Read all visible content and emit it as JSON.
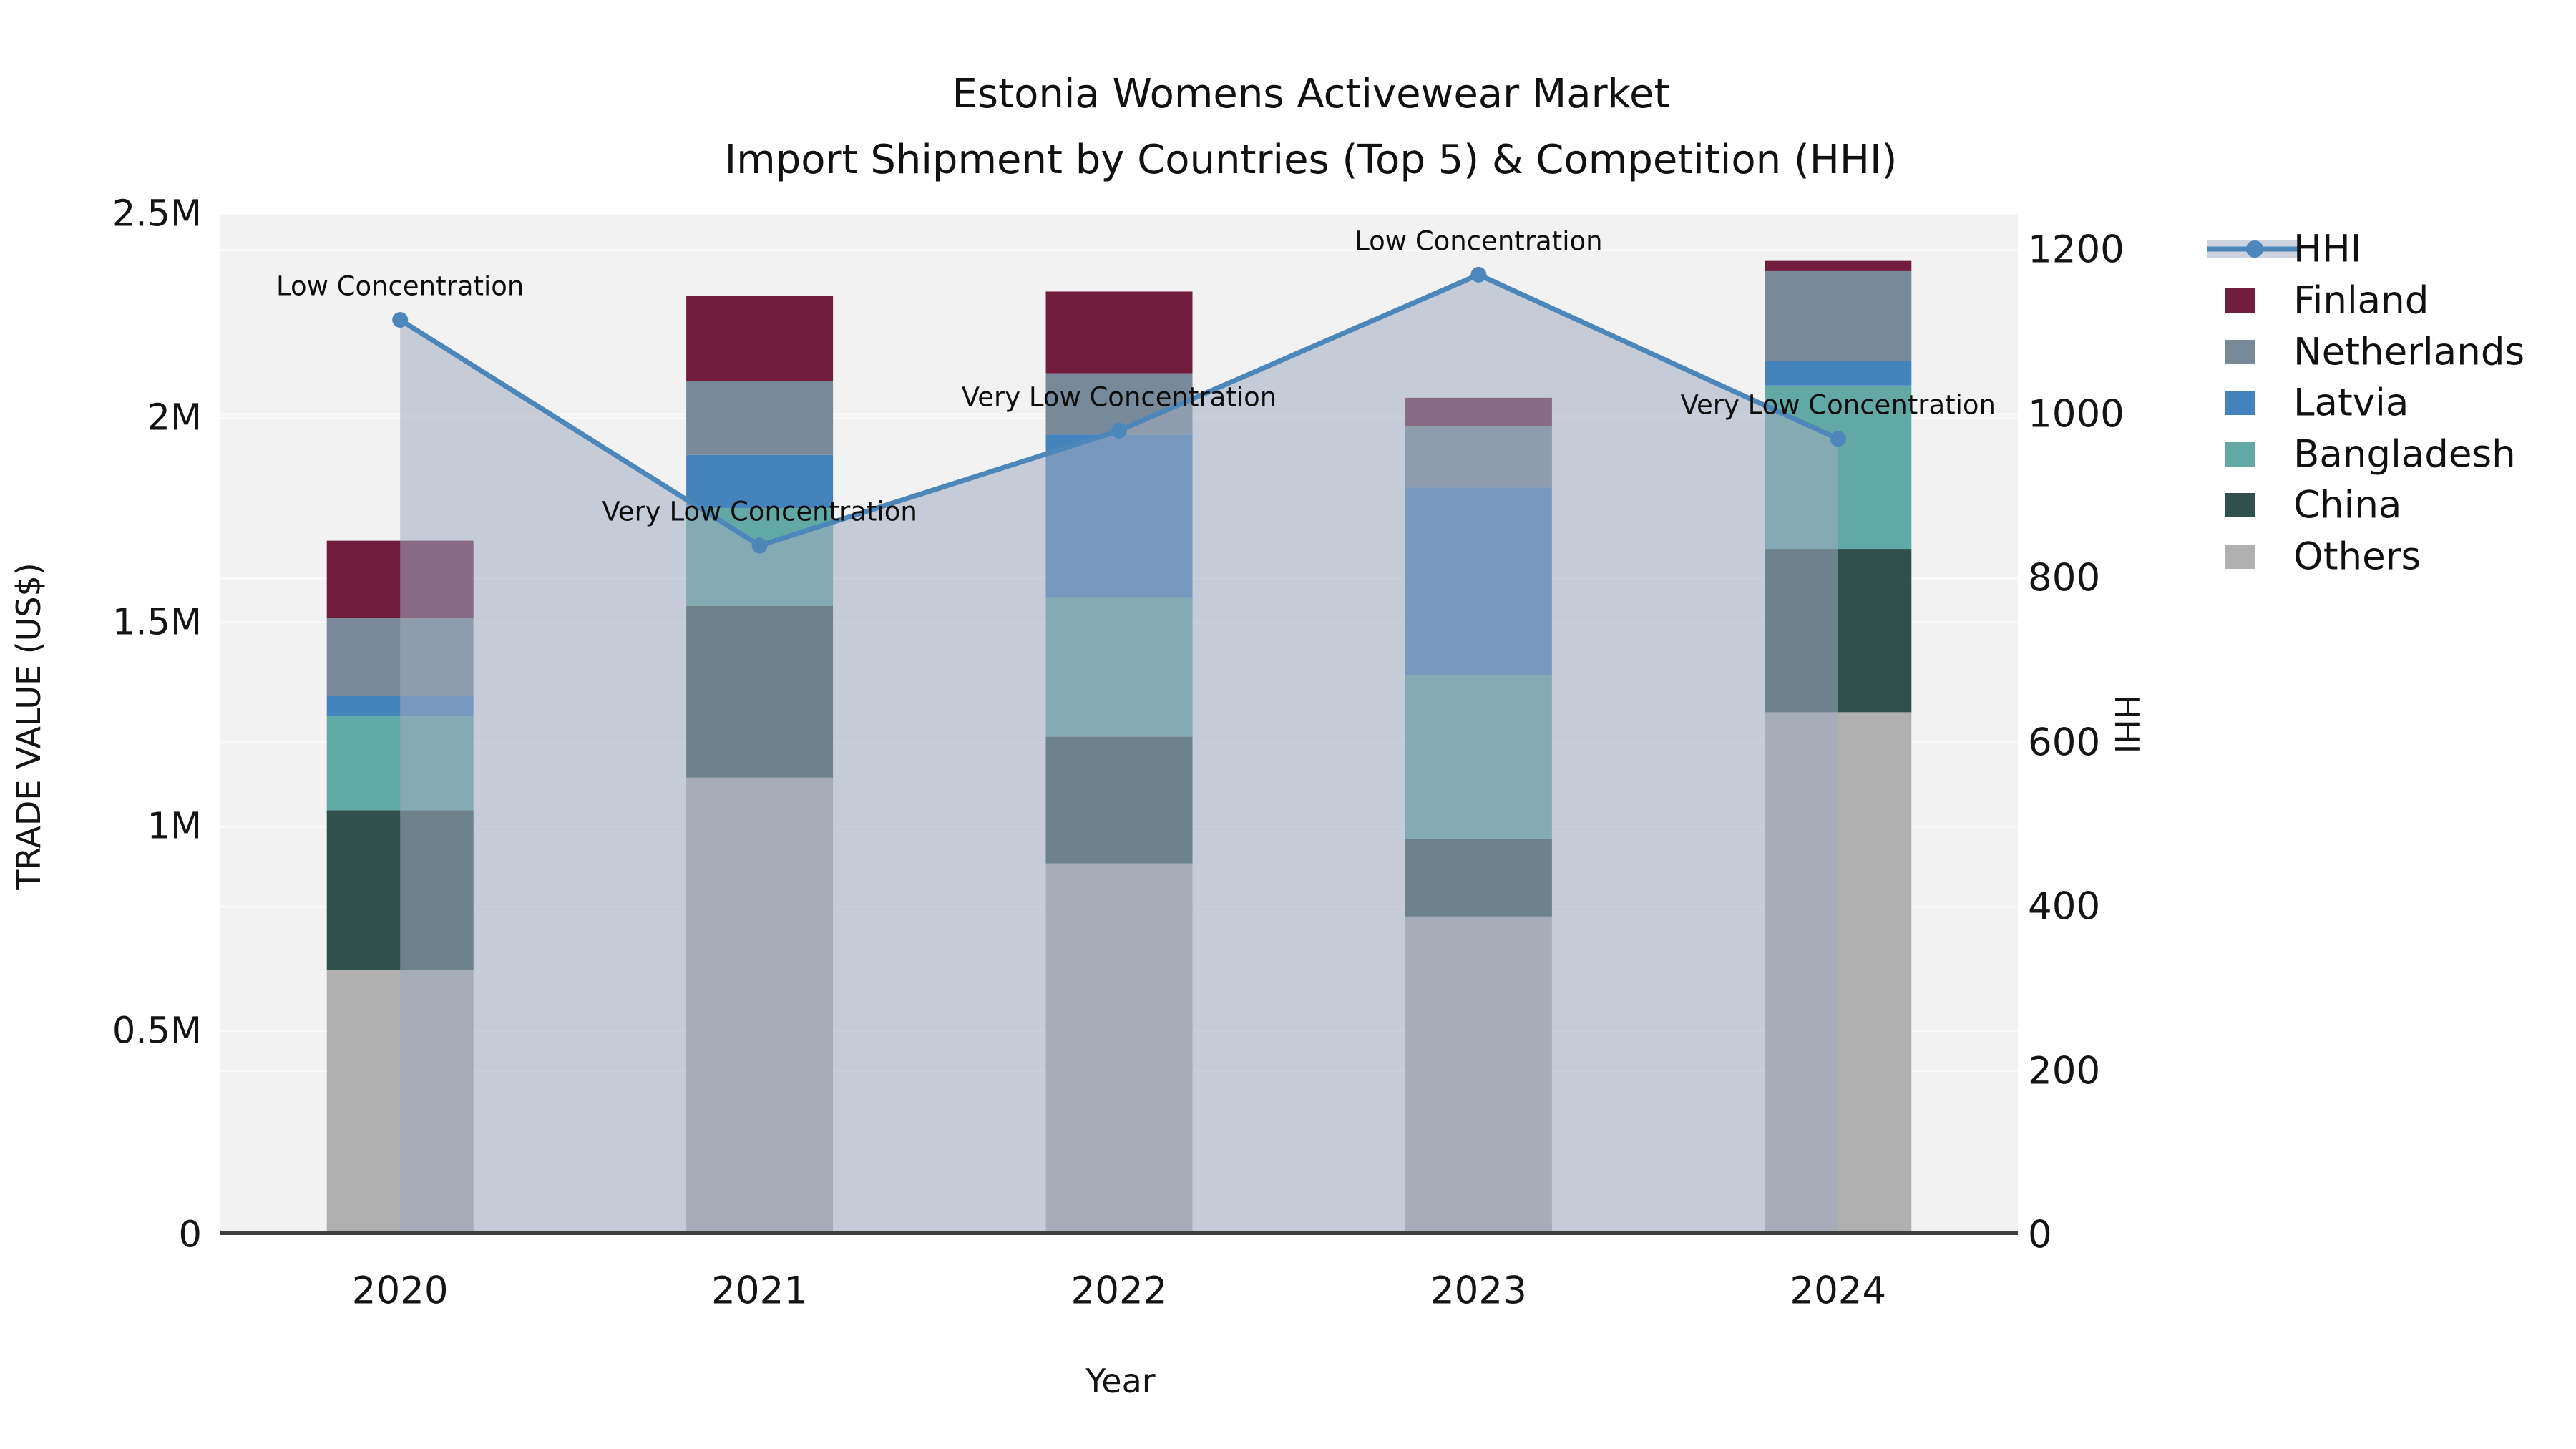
{
  "title": {
    "line1": "Estonia Womens Activewear Market",
    "line2": "Import Shipment by Countries (Top 5) & Competition (HHI)"
  },
  "axes": {
    "x_label": "Year",
    "y_left_label": "TRADE VALUE (US$)",
    "y_right_label": "HHI",
    "y_left_ticks": [
      "0",
      "0.5M",
      "1M",
      "1.5M",
      "2M",
      "2.5M"
    ],
    "y_right_ticks": [
      "0",
      "200",
      "400",
      "600",
      "800",
      "1000",
      "1200"
    ]
  },
  "legend": [
    {
      "label": "HHI",
      "symbol": "line",
      "line_color": "#4d86b8",
      "area_color": "#ccd3de"
    },
    {
      "label": "Finland",
      "symbol": "patch",
      "color": "#701d3e"
    },
    {
      "label": "Netherlands",
      "symbol": "patch",
      "color": "#78899a"
    },
    {
      "label": "Latvia",
      "symbol": "patch",
      "color": "#4583bd"
    },
    {
      "label": "Bangladesh",
      "symbol": "patch",
      "color": "#62a8a5"
    },
    {
      "label": "China",
      "symbol": "patch",
      "color": "#30504b"
    },
    {
      "label": "Others",
      "symbol": "patch",
      "color": "#b0b0b0"
    }
  ],
  "chart_data": {
    "type": "combo: stacked bar (trade value) + line with area (HHI)",
    "title": "Estonia Womens Activewear Market — Import Shipment by Countries (Top 5) & Competition (HHI)",
    "categories": [
      "2020",
      "2021",
      "2022",
      "2023",
      "2024"
    ],
    "xlabel": "Year",
    "ylabel_left": "TRADE VALUE (US$)",
    "ylabel_right": "HHI",
    "ylim_left": [
      0,
      2500000
    ],
    "ylim_right": [
      0,
      1244
    ],
    "y_left_tick_values": [
      0,
      500000,
      1000000,
      1500000,
      2000000,
      2500000
    ],
    "y_right_tick_values": [
      0,
      200,
      400,
      600,
      800,
      1000,
      1200
    ],
    "grid": true,
    "legend_position": "right",
    "stack_order_bottom_to_top": [
      "Others",
      "China",
      "Bangladesh",
      "Latvia",
      "Netherlands",
      "Finland"
    ],
    "series": [
      {
        "name": "Others",
        "color": "#b0b0b0",
        "values": [
          650000,
          1120000,
          910000,
          780000,
          1280000
        ]
      },
      {
        "name": "China",
        "color": "#30504b",
        "values": [
          390000,
          420000,
          310000,
          190000,
          400000
        ]
      },
      {
        "name": "Bangladesh",
        "color": "#62a8a5",
        "values": [
          230000,
          240000,
          340000,
          400000,
          400000
        ]
      },
      {
        "name": "Latvia",
        "color": "#4583bd",
        "values": [
          50000,
          130000,
          400000,
          460000,
          60000
        ]
      },
      {
        "name": "Netherlands",
        "color": "#78899a",
        "values": [
          190000,
          180000,
          150000,
          150000,
          220000
        ]
      },
      {
        "name": "Finland",
        "color": "#701d3e",
        "values": [
          190000,
          210000,
          200000,
          70000,
          25000
        ]
      }
    ],
    "hhi": {
      "name": "HHI",
      "line_color": "#4d86b8",
      "area_color": "rgba(160,171,191,0.55)",
      "values": [
        1115,
        840,
        980,
        1170,
        970
      ],
      "annotations": [
        "Low Concentration",
        "Very Low Concentration",
        "Very Low Concentration",
        "Low Concentration",
        "Very Low Concentration"
      ]
    }
  }
}
